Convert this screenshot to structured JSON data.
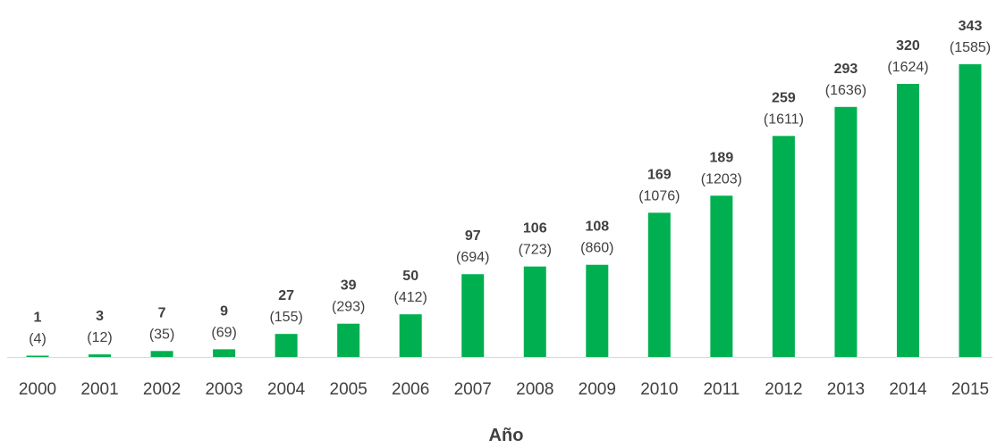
{
  "chart_data": {
    "type": "bar",
    "categories": [
      "2000",
      "2001",
      "2002",
      "2003",
      "2004",
      "2005",
      "2006",
      "2007",
      "2008",
      "2009",
      "2010",
      "2011",
      "2012",
      "2013",
      "2014",
      "2015"
    ],
    "values": [
      1,
      3,
      7,
      9,
      27,
      39,
      50,
      97,
      106,
      108,
      169,
      189,
      259,
      293,
      320,
      343
    ],
    "secondary_labels": [
      "(4)",
      "(12)",
      "(35)",
      "(69)",
      "(155)",
      "(293)",
      "(412)",
      "(694)",
      "(723)",
      "(860)",
      "(1076)",
      "(1203)",
      "(1611)",
      "(1636)",
      "(1624)",
      "(1585)"
    ],
    "title": "",
    "xlabel": "Año",
    "ylabel": "",
    "ylim": [
      0,
      343
    ],
    "grid": false,
    "legend": "none",
    "bar_color": "#00B050",
    "axis_color": "#D9D9D9",
    "text_color": "#404040"
  }
}
